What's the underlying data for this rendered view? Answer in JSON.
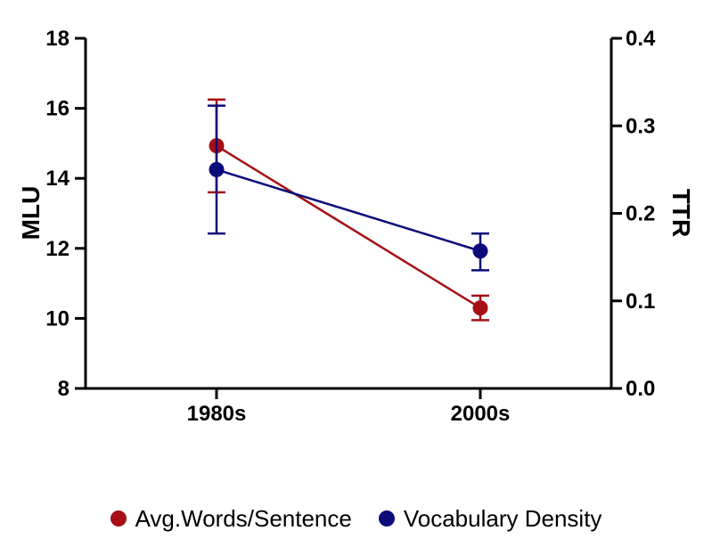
{
  "chart_data": {
    "type": "line",
    "categories": [
      "1980s",
      "2000s"
    ],
    "ylabel": "MLU",
    "y2label": "TTR",
    "ylim": [
      8,
      18
    ],
    "y2lim": [
      0.0,
      0.4
    ],
    "yticks": [
      "8",
      "10",
      "12",
      "14",
      "16",
      "18"
    ],
    "y2ticks": [
      "0.0",
      "0.1",
      "0.2",
      "0.3",
      "0.4"
    ],
    "legend_position": "bottom",
    "series": [
      {
        "name": "Avg.Words/Sentence",
        "axis": "left",
        "color": "#a50f15",
        "values": [
          14.93,
          10.3
        ],
        "error_low": [
          13.6,
          9.95
        ],
        "error_high": [
          16.25,
          10.65
        ]
      },
      {
        "name": "Vocabulary Density",
        "axis": "right",
        "color": "#0b0b7a",
        "values": [
          0.25,
          0.157
        ],
        "error_low": [
          0.177,
          0.135
        ],
        "error_high": [
          0.323,
          0.177
        ]
      }
    ]
  }
}
